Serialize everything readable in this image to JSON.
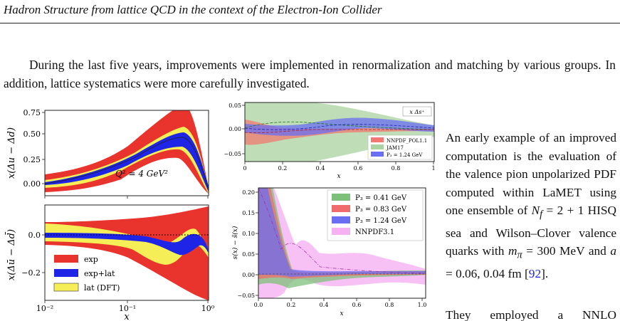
{
  "header": {
    "title": "Hadron Structure from lattice QCD in the context of the Electron-Ion Collider"
  },
  "intro": {
    "text": "During the last five years, improvements were implemented in renormalization and matching by various groups. In addition, lattice systematics were more carefully investigated."
  },
  "sidebar": {
    "before_nf": "An early example of an improved computation is the evaluation of the valence pion unpolarized PDF computed within LaMET using one ensemble of ",
    "nf_symbol": "N",
    "nf_sub": "f",
    "nf_value": " = 2 + 1 HISQ sea and Wilson–Clover valence quarks with ",
    "mpi_symbol": "m",
    "mpi_sub": "π",
    "mpi_value": " = 300 MeV and ",
    "a_symbol": "a",
    "a_value": " = 0.06, 0.04 fm [",
    "ref": "92",
    "after_ref": "].",
    "cut_line": "They employed a NNLO"
  },
  "figures": {
    "top_left": {
      "ylabel": "x(Δu − Δd)",
      "annotation": "Q² = 4 GeV²",
      "yticks": [
        "0.75",
        "0.50",
        "0.25",
        "0.00"
      ]
    },
    "bottom_left": {
      "ylabel": "x(Δū − Δd̄)",
      "xlabel": "x",
      "yticks": [
        "0.0",
        "−0.2"
      ],
      "xticks": [
        "10⁻²",
        "10⁻¹",
        "10⁰"
      ],
      "legend": [
        "exp",
        "exp+lat",
        "lat (DFT)"
      ]
    },
    "top_right": {
      "label": "x Δs⁺",
      "xlabel": "x",
      "yticks": [
        "0.05",
        "0.00",
        "−0.05"
      ],
      "xticks": [
        "0",
        "0.2",
        "0.4",
        "0.6",
        "0.8",
        "1"
      ],
      "legend": [
        "NNPDF_POL1.1",
        "JAM17",
        "P₃ = 1.24 GeV"
      ]
    },
    "bottom_right": {
      "ylabel": "s(x) − s̄(x)",
      "xlabel": "x",
      "yticks": [
        "0.20",
        "0.15",
        "0.10",
        "0.05",
        "0.00",
        "−0.05"
      ],
      "xticks": [
        "0.0",
        "0.2",
        "0.4",
        "0.6",
        "0.8",
        "1.0"
      ],
      "legend": [
        "P₃ = 0.41 GeV",
        "P₃ = 0.83 GeV",
        "P₃ = 1.24 GeV",
        "NNPDF3.1"
      ]
    }
  },
  "colors": {
    "exp_red": "#e8342c",
    "lat_yellow": "#f5ee57",
    "explat_blue": "#1f25e6",
    "nnpdf_pink": "#f5b1f2",
    "jam_green": "#a9d3a0",
    "p041_green": "#7ec07a",
    "p083_red": "#f06c6c",
    "p124_blue": "#6a6ef0"
  }
}
